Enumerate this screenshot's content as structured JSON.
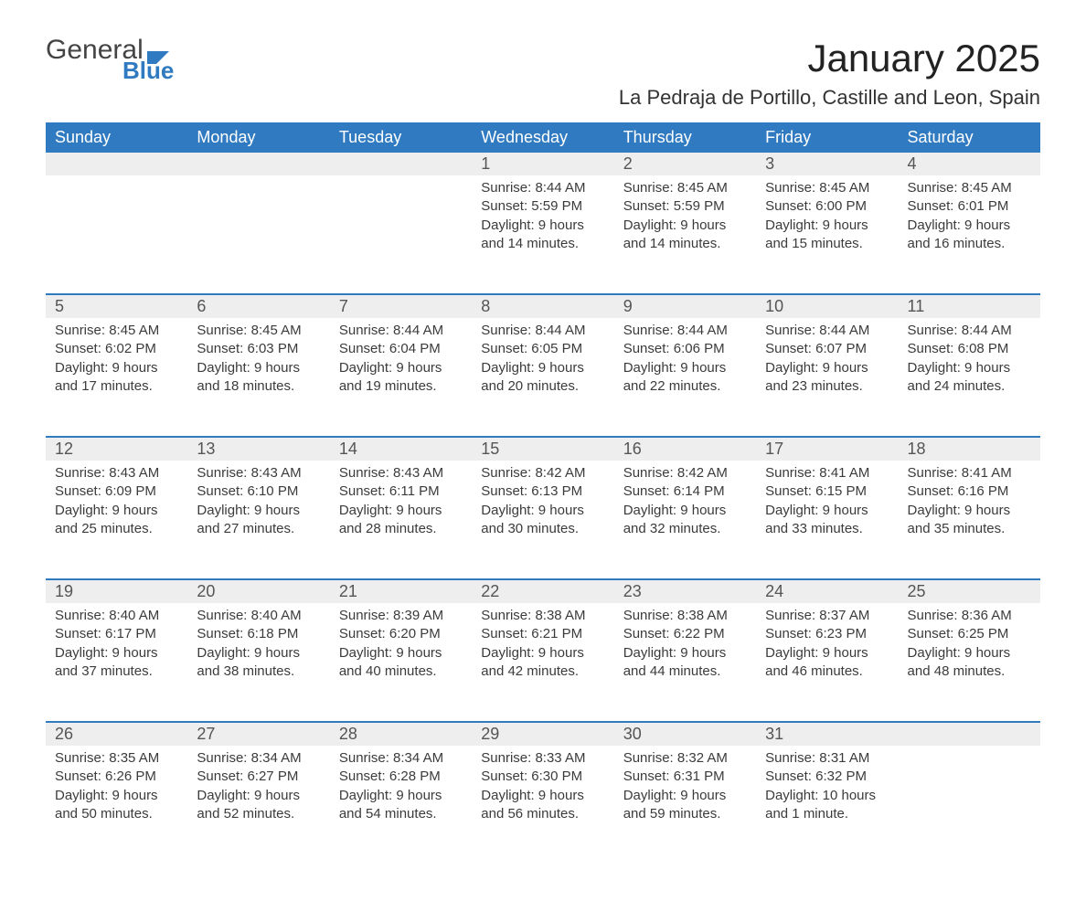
{
  "brand": {
    "word1": "General",
    "word2": "Blue"
  },
  "title": "January 2025",
  "location": "La Pedraja de Portillo, Castille and Leon, Spain",
  "colors": {
    "header_blue": "#2f7ac0",
    "row_alt": "#eeeeee",
    "row_border": "#2f7ac0",
    "text_dark": "#333333",
    "background": "#ffffff"
  },
  "weekdays": [
    "Sunday",
    "Monday",
    "Tuesday",
    "Wednesday",
    "Thursday",
    "Friday",
    "Saturday"
  ],
  "weeks": [
    [
      null,
      null,
      null,
      {
        "n": "1",
        "sr": "Sunrise: 8:44 AM",
        "ss": "Sunset: 5:59 PM",
        "d1": "Daylight: 9 hours",
        "d2": "and 14 minutes."
      },
      {
        "n": "2",
        "sr": "Sunrise: 8:45 AM",
        "ss": "Sunset: 5:59 PM",
        "d1": "Daylight: 9 hours",
        "d2": "and 14 minutes."
      },
      {
        "n": "3",
        "sr": "Sunrise: 8:45 AM",
        "ss": "Sunset: 6:00 PM",
        "d1": "Daylight: 9 hours",
        "d2": "and 15 minutes."
      },
      {
        "n": "4",
        "sr": "Sunrise: 8:45 AM",
        "ss": "Sunset: 6:01 PM",
        "d1": "Daylight: 9 hours",
        "d2": "and 16 minutes."
      }
    ],
    [
      {
        "n": "5",
        "sr": "Sunrise: 8:45 AM",
        "ss": "Sunset: 6:02 PM",
        "d1": "Daylight: 9 hours",
        "d2": "and 17 minutes."
      },
      {
        "n": "6",
        "sr": "Sunrise: 8:45 AM",
        "ss": "Sunset: 6:03 PM",
        "d1": "Daylight: 9 hours",
        "d2": "and 18 minutes."
      },
      {
        "n": "7",
        "sr": "Sunrise: 8:44 AM",
        "ss": "Sunset: 6:04 PM",
        "d1": "Daylight: 9 hours",
        "d2": "and 19 minutes."
      },
      {
        "n": "8",
        "sr": "Sunrise: 8:44 AM",
        "ss": "Sunset: 6:05 PM",
        "d1": "Daylight: 9 hours",
        "d2": "and 20 minutes."
      },
      {
        "n": "9",
        "sr": "Sunrise: 8:44 AM",
        "ss": "Sunset: 6:06 PM",
        "d1": "Daylight: 9 hours",
        "d2": "and 22 minutes."
      },
      {
        "n": "10",
        "sr": "Sunrise: 8:44 AM",
        "ss": "Sunset: 6:07 PM",
        "d1": "Daylight: 9 hours",
        "d2": "and 23 minutes."
      },
      {
        "n": "11",
        "sr": "Sunrise: 8:44 AM",
        "ss": "Sunset: 6:08 PM",
        "d1": "Daylight: 9 hours",
        "d2": "and 24 minutes."
      }
    ],
    [
      {
        "n": "12",
        "sr": "Sunrise: 8:43 AM",
        "ss": "Sunset: 6:09 PM",
        "d1": "Daylight: 9 hours",
        "d2": "and 25 minutes."
      },
      {
        "n": "13",
        "sr": "Sunrise: 8:43 AM",
        "ss": "Sunset: 6:10 PM",
        "d1": "Daylight: 9 hours",
        "d2": "and 27 minutes."
      },
      {
        "n": "14",
        "sr": "Sunrise: 8:43 AM",
        "ss": "Sunset: 6:11 PM",
        "d1": "Daylight: 9 hours",
        "d2": "and 28 minutes."
      },
      {
        "n": "15",
        "sr": "Sunrise: 8:42 AM",
        "ss": "Sunset: 6:13 PM",
        "d1": "Daylight: 9 hours",
        "d2": "and 30 minutes."
      },
      {
        "n": "16",
        "sr": "Sunrise: 8:42 AM",
        "ss": "Sunset: 6:14 PM",
        "d1": "Daylight: 9 hours",
        "d2": "and 32 minutes."
      },
      {
        "n": "17",
        "sr": "Sunrise: 8:41 AM",
        "ss": "Sunset: 6:15 PM",
        "d1": "Daylight: 9 hours",
        "d2": "and 33 minutes."
      },
      {
        "n": "18",
        "sr": "Sunrise: 8:41 AM",
        "ss": "Sunset: 6:16 PM",
        "d1": "Daylight: 9 hours",
        "d2": "and 35 minutes."
      }
    ],
    [
      {
        "n": "19",
        "sr": "Sunrise: 8:40 AM",
        "ss": "Sunset: 6:17 PM",
        "d1": "Daylight: 9 hours",
        "d2": "and 37 minutes."
      },
      {
        "n": "20",
        "sr": "Sunrise: 8:40 AM",
        "ss": "Sunset: 6:18 PM",
        "d1": "Daylight: 9 hours",
        "d2": "and 38 minutes."
      },
      {
        "n": "21",
        "sr": "Sunrise: 8:39 AM",
        "ss": "Sunset: 6:20 PM",
        "d1": "Daylight: 9 hours",
        "d2": "and 40 minutes."
      },
      {
        "n": "22",
        "sr": "Sunrise: 8:38 AM",
        "ss": "Sunset: 6:21 PM",
        "d1": "Daylight: 9 hours",
        "d2": "and 42 minutes."
      },
      {
        "n": "23",
        "sr": "Sunrise: 8:38 AM",
        "ss": "Sunset: 6:22 PM",
        "d1": "Daylight: 9 hours",
        "d2": "and 44 minutes."
      },
      {
        "n": "24",
        "sr": "Sunrise: 8:37 AM",
        "ss": "Sunset: 6:23 PM",
        "d1": "Daylight: 9 hours",
        "d2": "and 46 minutes."
      },
      {
        "n": "25",
        "sr": "Sunrise: 8:36 AM",
        "ss": "Sunset: 6:25 PM",
        "d1": "Daylight: 9 hours",
        "d2": "and 48 minutes."
      }
    ],
    [
      {
        "n": "26",
        "sr": "Sunrise: 8:35 AM",
        "ss": "Sunset: 6:26 PM",
        "d1": "Daylight: 9 hours",
        "d2": "and 50 minutes."
      },
      {
        "n": "27",
        "sr": "Sunrise: 8:34 AM",
        "ss": "Sunset: 6:27 PM",
        "d1": "Daylight: 9 hours",
        "d2": "and 52 minutes."
      },
      {
        "n": "28",
        "sr": "Sunrise: 8:34 AM",
        "ss": "Sunset: 6:28 PM",
        "d1": "Daylight: 9 hours",
        "d2": "and 54 minutes."
      },
      {
        "n": "29",
        "sr": "Sunrise: 8:33 AM",
        "ss": "Sunset: 6:30 PM",
        "d1": "Daylight: 9 hours",
        "d2": "and 56 minutes."
      },
      {
        "n": "30",
        "sr": "Sunrise: 8:32 AM",
        "ss": "Sunset: 6:31 PM",
        "d1": "Daylight: 9 hours",
        "d2": "and 59 minutes."
      },
      {
        "n": "31",
        "sr": "Sunrise: 8:31 AM",
        "ss": "Sunset: 6:32 PM",
        "d1": "Daylight: 10 hours",
        "d2": "and 1 minute."
      },
      null
    ]
  ]
}
